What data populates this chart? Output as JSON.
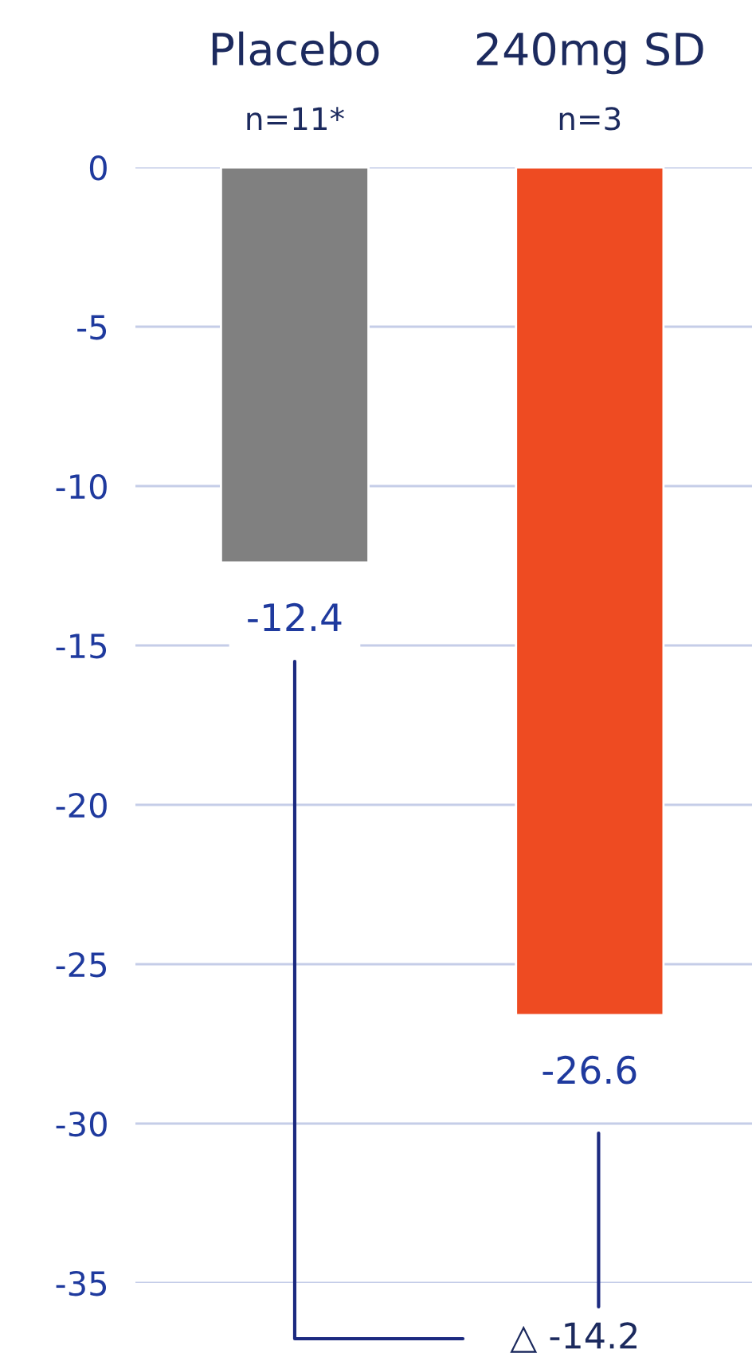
{
  "chart_data": {
    "type": "bar",
    "categories": [
      "Placebo\nn=11*",
      "240mg SD\nn=3"
    ],
    "values": [
      -12.4,
      -26.6
    ],
    "colors": [
      "#808080",
      "#ee4b22"
    ],
    "ylim": [
      -35,
      0
    ],
    "yticks": [
      0,
      -5,
      -10,
      -15,
      -20,
      -25,
      -30,
      -35
    ],
    "grid": "y",
    "data_labels": true,
    "annotations": [
      "△ -14.2"
    ]
  }
}
